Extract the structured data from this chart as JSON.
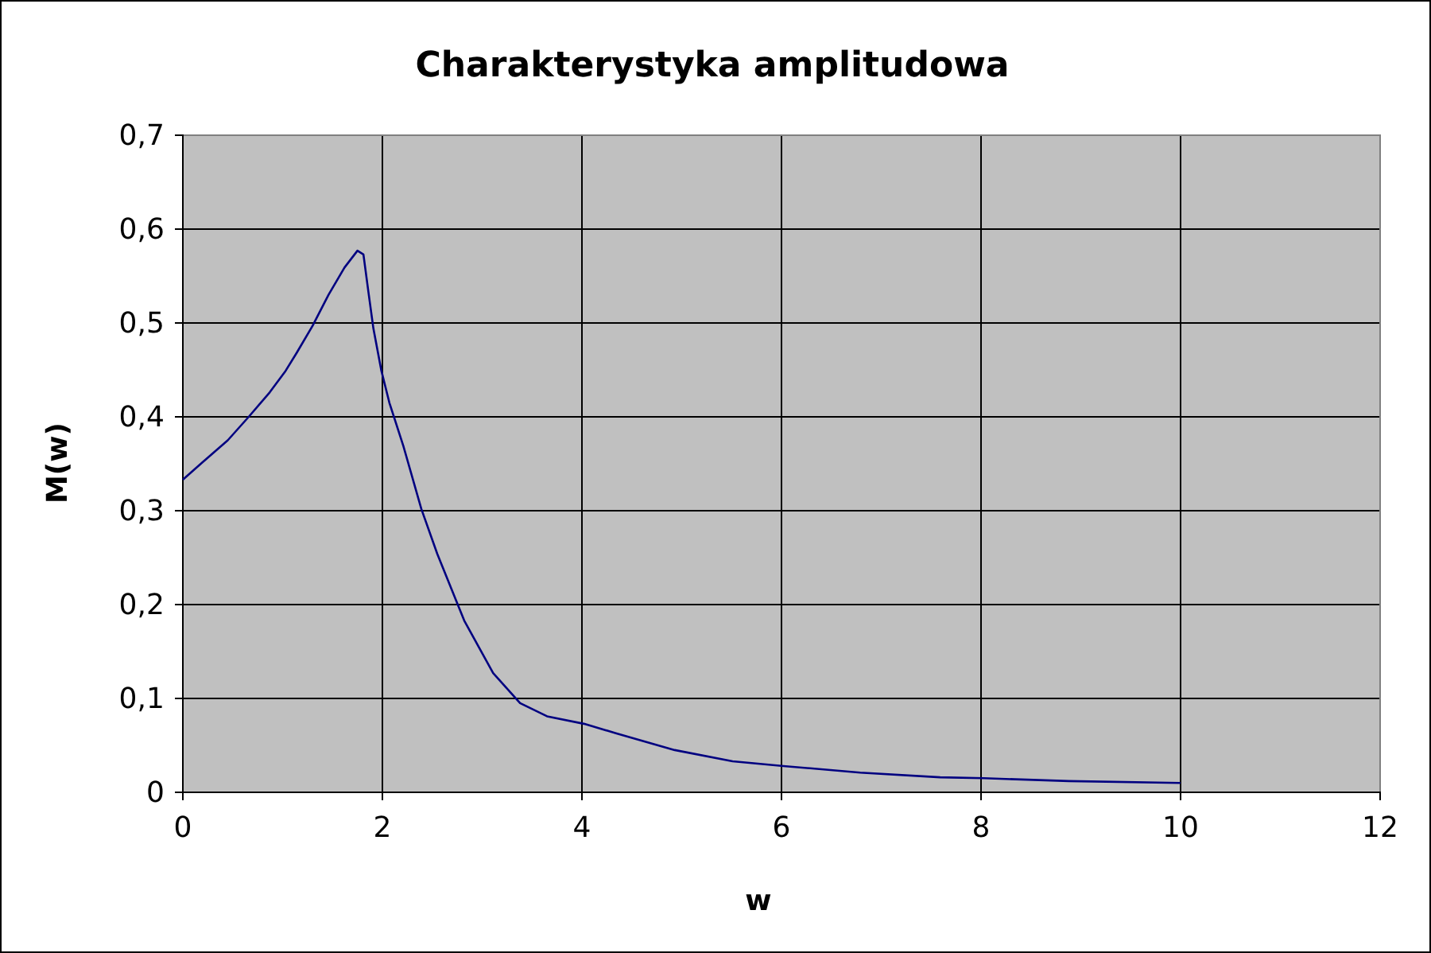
{
  "chart_data": {
    "type": "line",
    "title": "Charakterystyka amplitudowa",
    "xlabel": "w",
    "ylabel": "M(w)",
    "x": [
      0,
      0.18,
      0.45,
      0.66,
      0.87,
      1.03,
      1.14,
      1.3,
      1.46,
      1.62,
      1.75,
      1.81,
      1.86,
      1.91,
      1.99,
      2.07,
      2.21,
      2.39,
      2.55,
      2.82,
      3.11,
      3.38,
      3.65,
      4.02,
      4.34,
      4.93,
      5.51,
      6.02,
      6.79,
      7.59,
      8.03,
      8.88,
      10
    ],
    "series": [
      {
        "color": "#000080",
        "values": [
          0.333,
          0.35,
          0.375,
          0.4,
          0.426,
          0.449,
          0.468,
          0.497,
          0.53,
          0.559,
          0.577,
          0.573,
          0.533,
          0.494,
          0.449,
          0.415,
          0.369,
          0.302,
          0.254,
          0.183,
          0.127,
          0.095,
          0.081,
          0.073,
          0.063,
          0.045,
          0.033,
          0.028,
          0.021,
          0.016,
          0.015,
          0.012,
          0.01
        ]
      }
    ],
    "xlim": [
      0,
      12
    ],
    "xticks": [
      0,
      2,
      4,
      6,
      8,
      10,
      12
    ],
    "ylim": [
      0,
      0.7
    ],
    "yticks": [
      0,
      {
        "value": 0.1,
        "label": "0,1"
      },
      {
        "value": 0.2,
        "label": "0,2"
      },
      {
        "value": 0.3,
        "label": "0,3"
      },
      {
        "value": 0.4,
        "label": "0,4"
      },
      {
        "value": 0.5,
        "label": "0,5"
      },
      {
        "value": 0.6,
        "label": "0,6"
      },
      {
        "value": 0.7,
        "label": "0,7"
      }
    ],
    "grid": true,
    "marker": "none",
    "line_style": "solid"
  }
}
